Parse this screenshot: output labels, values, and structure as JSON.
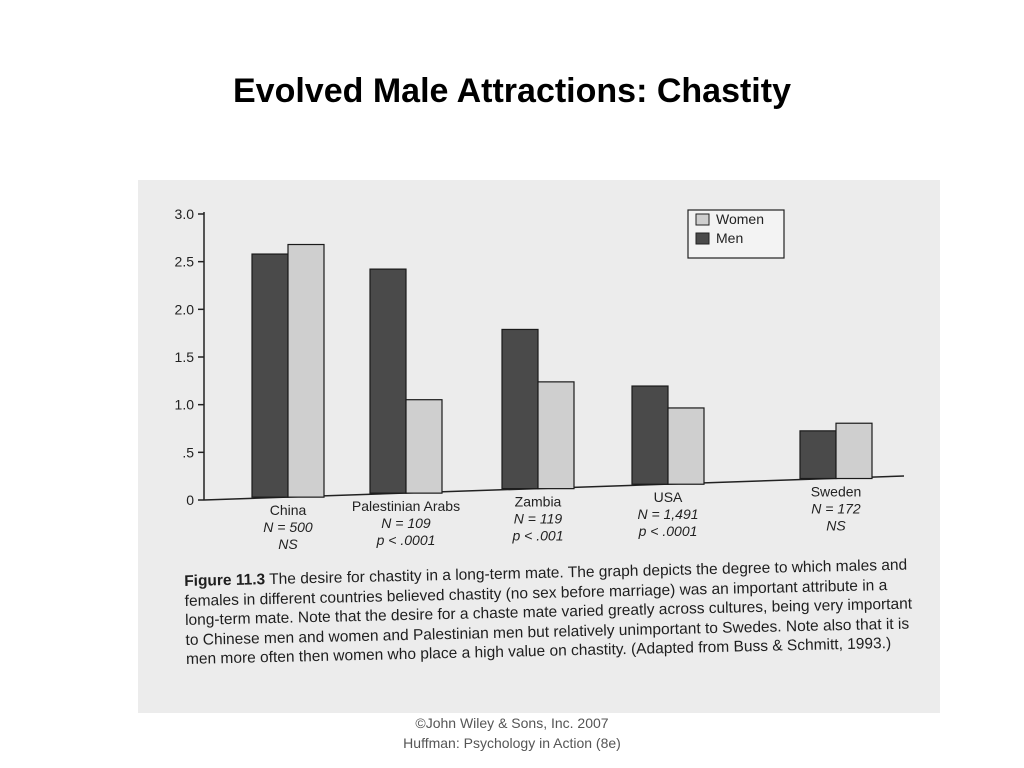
{
  "slide": {
    "title": "Evolved Male Attractions: Chastity"
  },
  "footer": {
    "line1": "©John Wiley & Sons, Inc. 2007",
    "line2": "Huffman: Psychology in Action (8e)"
  },
  "caption": {
    "figure_label": "Figure 11.3",
    "text": "The desire for chastity in a long-term mate. The graph depicts the degree to which males and females in different countries believed chastity (no sex before marriage) was an important attribute in a long-term mate. Note that the desire for a chaste mate varied greatly across cultures, being very important to Chinese men and women and Palestinian men but relatively unimportant to Swedes. Note also that it is men more often then women who place a high value on chastity. (Adapted from Buss & Schmitt, 1993.)"
  },
  "chart_data": {
    "type": "bar",
    "title": "",
    "xlabel": "",
    "ylabel": "",
    "ylim": [
      0,
      3.0
    ],
    "y_ticks": [
      "0",
      ".5",
      "1.0",
      "1.5",
      "2.0",
      "2.5",
      "3.0"
    ],
    "y_tick_values": [
      0,
      0.5,
      1.0,
      1.5,
      2.0,
      2.5,
      3.0
    ],
    "legend_position": "top-right",
    "categories": [
      {
        "name": "China",
        "n": "N = 500",
        "p": "NS"
      },
      {
        "name": "Palestinian Arabs",
        "n": "N = 109",
        "p": "p < .0001"
      },
      {
        "name": "Zambia",
        "n": "N = 119",
        "p": "p < .001"
      },
      {
        "name": "USA",
        "n": "N = 1,491",
        "p": "p < .0001"
      },
      {
        "name": "Sweden",
        "n": "N = 172",
        "p": "NS"
      }
    ],
    "series": [
      {
        "name": "Men",
        "color": "#4a4a4a",
        "values": [
          2.55,
          2.35,
          1.67,
          1.03,
          0.5
        ]
      },
      {
        "name": "Women",
        "color": "#cfcfcf",
        "values": [
          2.65,
          0.98,
          1.12,
          0.8,
          0.58
        ]
      }
    ],
    "legend": [
      "Women",
      "Men"
    ]
  }
}
